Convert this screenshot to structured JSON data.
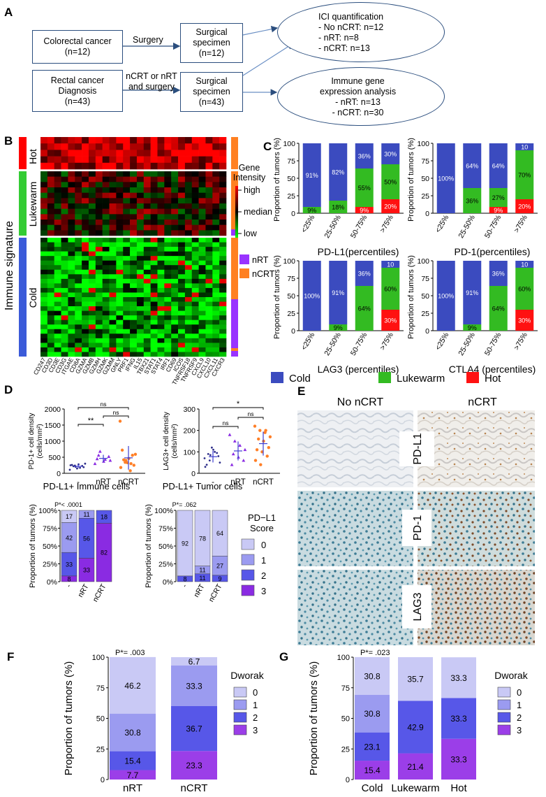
{
  "panels": [
    "A",
    "B",
    "C",
    "D",
    "E",
    "F",
    "G"
  ],
  "panelA": {
    "box1": [
      "Colorectal cancer",
      "(n=12)"
    ],
    "arrow1": "Surgery",
    "box2": [
      "Surgical",
      "specimen",
      "(n=12)"
    ],
    "box3": [
      "Rectal cancer",
      "Diagnosis",
      "(n=43)"
    ],
    "arrow2": [
      "nCRT or nRT",
      "and surgery"
    ],
    "box4": [
      "Surgical",
      "specimen",
      "(n=43)"
    ],
    "ellipse1": [
      "ICI quantification",
      "- No nCRT: n=12",
      "- nRT: n=8",
      "- nCRT: n=13"
    ],
    "ellipse2": [
      "Immune gene",
      "expression analysis",
      "- nRT: n=13",
      "- nCRT: n=30"
    ]
  },
  "panelB": {
    "ylabel": "Immune  signature",
    "groups": [
      "Hot",
      "Lukewarm",
      "Cold"
    ],
    "genes": [
      "CD247",
      "CD3D",
      "CD3E",
      "CD3G",
      "ITGAE",
      "CD8A",
      "GZMA",
      "GZMB",
      "GZMH",
      "GZMK",
      "GZMM",
      "GNLY",
      "PRF1",
      "IFNG",
      "IL15",
      "TBX21",
      "STAT1",
      "STAT4",
      "IRF1",
      "CD69",
      "ICOS",
      "TNFRSF18",
      "TNFRSF9",
      "CXCL9",
      "CXCL10",
      "CXCL11",
      "CXCR3"
    ],
    "legend_title": [
      "Gene",
      "Intensity"
    ],
    "legend_levels": [
      "high",
      "median",
      "low"
    ],
    "treatment_legend": [
      "nRT",
      "nCRT"
    ],
    "colors": {
      "high": "#ff0000",
      "median": "#000000",
      "low": "#00ff00",
      "nRT": "#9933ff",
      "nCRT": "#ff8022",
      "hot_bar": "#ff0000",
      "lukewarm_bar": "#33cc33",
      "cold_bar": "#3b5bd9"
    }
  },
  "panelC": {
    "ylabel": "Proportion of tumors (%)",
    "categories": [
      "<25%",
      "25-50%",
      "50-75%",
      ">75%"
    ],
    "yticks": [
      "0",
      "25",
      "50",
      "75",
      "100"
    ],
    "legend": [
      "Cold",
      "Lukewarm",
      "Hot"
    ],
    "colors": {
      "Cold": "#3b4bbf",
      "Lukewarm": "#33bb22",
      "Hot": "#ff1111"
    }
  },
  "panelD": {
    "top_left": {
      "ylabel": [
        "PD-1+ cell density",
        "(cells/mm²)"
      ],
      "yticks": [
        "0",
        "500",
        "1000",
        "1500",
        "2000"
      ],
      "xcats": [
        "-",
        "nRT",
        "nCRT"
      ],
      "sig": [
        "**",
        "ns",
        "ns"
      ]
    },
    "top_right": {
      "ylabel": [
        "LAG3+ cell density",
        "(cells/mm²)"
      ],
      "yticks": [
        "0",
        "100",
        "200",
        "300"
      ],
      "xcats": [
        "-",
        "nRT",
        "nCRT"
      ],
      "sig": [
        "ns",
        "ns",
        "*"
      ]
    },
    "bottom_ylabel": "Proportion of tumors (%)",
    "yticks": [
      "0%",
      "25%",
      "50%",
      "75%",
      "100%"
    ],
    "xcats": [
      "-",
      "nRT",
      "nCRT"
    ],
    "legend_title": [
      "PD−L1",
      "Score"
    ],
    "legend_levels": [
      "0",
      "1",
      "2",
      "3"
    ],
    "score_colors": [
      "#c9c9f5",
      "#9b9bf0",
      "#5757e8",
      "#8a2be2"
    ]
  },
  "panelE": {
    "columns": [
      "No nCRT",
      "nCRT"
    ],
    "rows": [
      "PD-L1",
      "PD-1",
      "LAG3"
    ]
  },
  "panelFG": {
    "ylabel": "Proportion of tumors (%)",
    "yticks": [
      "0",
      "25",
      "50",
      "75",
      "100"
    ],
    "legend_title": "Dworak",
    "legend_levels": [
      "0",
      "1",
      "2",
      "3"
    ],
    "colors": [
      "#c9c9f5",
      "#9b9bf0",
      "#5757e8",
      "#9b3ee8"
    ]
  },
  "chart_data": [
    {
      "type": "bar",
      "title": "PD-L1(percentiles)",
      "categories": [
        "<25%",
        "25-50%",
        "50-75%",
        ">75%"
      ],
      "series": [
        {
          "name": "Cold",
          "values": [
            91,
            82,
            36,
            30
          ],
          "labels": [
            "91%",
            "82%",
            "36%",
            "30%"
          ]
        },
        {
          "name": "Lukewarm",
          "values": [
            9,
            18,
            55,
            50
          ],
          "labels": [
            "9%",
            "18%",
            "55%",
            "50%"
          ]
        },
        {
          "name": "Hot",
          "values": [
            0,
            0,
            9,
            20
          ],
          "labels": [
            "",
            "",
            "9%",
            "20%"
          ]
        }
      ],
      "ylim": [
        0,
        100
      ]
    },
    {
      "type": "bar",
      "title": "PD-1(percentiles)",
      "categories": [
        "<25%",
        "25-50%",
        "50-75%",
        ">75%"
      ],
      "series": [
        {
          "name": "Cold",
          "values": [
            100,
            64,
            64,
            10
          ],
          "labels": [
            "100%",
            "64%",
            "64%",
            "10"
          ]
        },
        {
          "name": "Lukewarm",
          "values": [
            0,
            36,
            27,
            70
          ],
          "labels": [
            "",
            "36%",
            "27%",
            "70%"
          ]
        },
        {
          "name": "Hot",
          "values": [
            0,
            0,
            9,
            20
          ],
          "labels": [
            "",
            "",
            "9%",
            "20%"
          ]
        }
      ],
      "ylim": [
        0,
        100
      ]
    },
    {
      "type": "bar",
      "title": "LAG3 (percentiles)",
      "categories": [
        "<25%",
        "25-50%",
        "50-75%",
        ">75%"
      ],
      "series": [
        {
          "name": "Cold",
          "values": [
            100,
            91,
            36,
            10
          ],
          "labels": [
            "100%",
            "91%",
            "36%",
            "10"
          ]
        },
        {
          "name": "Lukewarm",
          "values": [
            0,
            9,
            64,
            60
          ],
          "labels": [
            "",
            "9%",
            "64%",
            "60%"
          ]
        },
        {
          "name": "Hot",
          "values": [
            0,
            0,
            0,
            30
          ],
          "labels": [
            "",
            "",
            "",
            "30%"
          ]
        }
      ],
      "ylim": [
        0,
        100
      ]
    },
    {
      "type": "bar",
      "title": "CTLA4 (percentiles)",
      "categories": [
        "<25%",
        "25-50%",
        "50-75%",
        ">75%"
      ],
      "series": [
        {
          "name": "Cold",
          "values": [
            100,
            91,
            36,
            10
          ],
          "labels": [
            "100%",
            "91%",
            "36%",
            "10"
          ]
        },
        {
          "name": "Lukewarm",
          "values": [
            0,
            9,
            64,
            60
          ],
          "labels": [
            "",
            "9%",
            "64%",
            "60%"
          ]
        },
        {
          "name": "Hot",
          "values": [
            0,
            0,
            0,
            30
          ],
          "labels": [
            "",
            "",
            "",
            "30%"
          ]
        }
      ],
      "ylim": [
        0,
        100
      ]
    },
    {
      "type": "scatter",
      "title": "",
      "categories": [
        "-",
        "nRT",
        "nCRT"
      ],
      "series": [
        {
          "values": [
            110,
            240,
            170,
            300,
            220,
            280,
            190,
            260,
            150,
            230,
            250,
            200
          ]
        },
        {
          "values": [
            300,
            680,
            430,
            400,
            560,
            370,
            520,
            450
          ]
        },
        {
          "values": [
            1620,
            340,
            80,
            590,
            420,
            460,
            250,
            720,
            330,
            560,
            180,
            400,
            300
          ]
        }
      ],
      "ylabel": "PD-1+ cell density (cells/mm²)",
      "ylim": [
        0,
        2000
      ],
      "annotations": [
        "**",
        "ns",
        "ns"
      ]
    },
    {
      "type": "scatter",
      "title": "",
      "categories": [
        "-",
        "nRT",
        "nCRT"
      ],
      "series": [
        {
          "values": [
            70,
            60,
            100,
            50,
            90,
            110,
            80,
            40,
            120,
            95,
            30,
            85
          ]
        },
        {
          "values": [
            180,
            150,
            130,
            110,
            90,
            75,
            60,
            40
          ]
        },
        {
          "values": [
            220,
            200,
            190,
            170,
            160,
            150,
            120,
            110,
            100,
            80,
            60,
            40,
            200
          ]
        }
      ],
      "ylabel": "LAG3+ cell density (cells/mm²)",
      "ylim": [
        0,
        300
      ],
      "annotations": [
        "ns",
        "ns",
        "*"
      ]
    },
    {
      "type": "bar",
      "title": "PD-L1+ Immune cells",
      "annotation": "P*< .0001",
      "categories": [
        "-",
        "nRT",
        "nCRT"
      ],
      "series": [
        {
          "name": "3",
          "values": [
            0,
            33,
            82
          ],
          "labels": [
            "",
            "33",
            "82"
          ]
        },
        {
          "name": "2",
          "values": [
            33,
            56,
            18
          ],
          "labels": [
            "33",
            "56",
            "18"
          ]
        },
        {
          "name": "1",
          "values": [
            42,
            11,
            0
          ],
          "labels": [
            "42",
            "11",
            ""
          ]
        },
        {
          "name": "0",
          "values": [
            17,
            0,
            0
          ],
          "labels": [
            "17",
            "",
            ""
          ]
        },
        {
          "name": "8",
          "values": [
            8,
            0,
            0
          ],
          "labels": [
            "8",
            "",
            ""
          ]
        }
      ],
      "ylim": [
        0,
        100
      ]
    },
    {
      "type": "bar",
      "title": "PD-L1+ Tumor cells",
      "annotation": "P*= .062",
      "categories": [
        "-",
        "nRT",
        "nCRT"
      ],
      "series": [
        {
          "name": "3",
          "values": [
            0,
            0,
            0
          ]
        },
        {
          "name": "2",
          "values": [
            8,
            11,
            9
          ],
          "labels": [
            "8",
            "11",
            "9"
          ]
        },
        {
          "name": "1",
          "values": [
            0,
            11,
            27
          ],
          "labels": [
            "",
            "11",
            "27"
          ]
        },
        {
          "name": "0",
          "values": [
            92,
            78,
            64
          ],
          "labels": [
            "92",
            "78",
            "64"
          ]
        }
      ],
      "ylim": [
        0,
        100
      ]
    },
    {
      "type": "bar",
      "title": "",
      "annotation": "P*= .003",
      "categories": [
        "nRT",
        "nCRT"
      ],
      "series": [
        {
          "name": "3",
          "values": [
            7.7,
            23.3
          ],
          "labels": [
            "7.7",
            "23.3"
          ]
        },
        {
          "name": "2",
          "values": [
            15.4,
            36.7
          ],
          "labels": [
            "15.4",
            "36.7"
          ]
        },
        {
          "name": "1",
          "values": [
            30.8,
            33.3
          ],
          "labels": [
            "30.8",
            "33.3"
          ]
        },
        {
          "name": "0",
          "values": [
            46.2,
            6.7
          ],
          "labels": [
            "46.2",
            "6.7"
          ]
        }
      ],
      "ylabel": "Proportion of tumors (%)",
      "ylim": [
        0,
        100
      ]
    },
    {
      "type": "bar",
      "title": "",
      "annotation": "P*= .023",
      "categories": [
        "Cold",
        "Lukewarm",
        "Hot"
      ],
      "series": [
        {
          "name": "3",
          "values": [
            15.4,
            21.4,
            33.3
          ],
          "labels": [
            "15.4",
            "21.4",
            "33.3"
          ]
        },
        {
          "name": "2",
          "values": [
            23.1,
            42.9,
            33.3
          ],
          "labels": [
            "23.1",
            "42.9",
            "33.3"
          ]
        },
        {
          "name": "1",
          "values": [
            30.8,
            0,
            0
          ],
          "labels": [
            "30.8",
            "",
            ""
          ]
        },
        {
          "name": "0",
          "values": [
            30.8,
            35.7,
            33.3
          ],
          "labels": [
            "30.8",
            "35.7",
            "33.3"
          ]
        }
      ],
      "ylabel": "Proportion of tumors (%)",
      "ylim": [
        0,
        100
      ]
    }
  ]
}
